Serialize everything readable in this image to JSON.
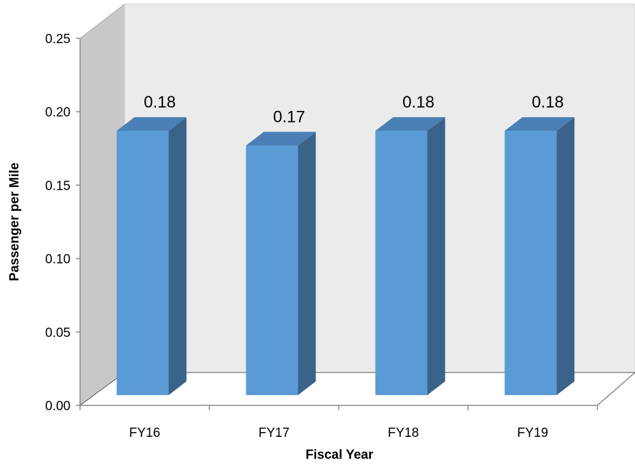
{
  "chart_data": {
    "type": "bar",
    "categories": [
      "FY16",
      "FY17",
      "FY18",
      "FY19"
    ],
    "values": [
      0.18,
      0.17,
      0.18,
      0.18
    ],
    "data_labels": [
      "0.18",
      "0.17",
      "0.18",
      "0.18"
    ],
    "title": "",
    "xlabel": "Fiscal Year",
    "ylabel": "Passenger per Mile",
    "ylim": [
      0,
      0.25
    ],
    "yticks": [
      "0.00",
      "0.05",
      "0.10",
      "0.15",
      "0.20",
      "0.25"
    ],
    "grid": false,
    "legend": "none",
    "three_d": true
  },
  "colors": {
    "bar_front": "#5B9BD5",
    "bar_side": "#3A6389",
    "bar_top": "#4A80B5",
    "back_wall": "#EBEBEB",
    "side_wall": "#C8C8C8",
    "floor": "#FFFFFF",
    "axis": "#888888"
  }
}
